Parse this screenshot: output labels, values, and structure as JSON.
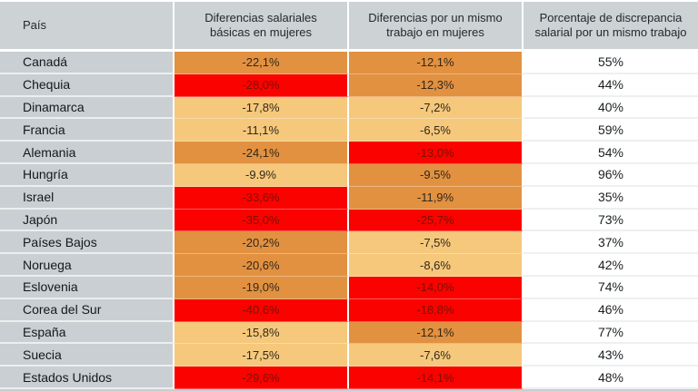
{
  "chart_data": {
    "type": "table",
    "columns": [
      "País",
      "Diferencias salariales básicas en mujeres",
      "Diferencias por un mismo trabajo en mujeres",
      "Porcentaje de discrepancia salarial por un mismo trabajo"
    ],
    "rows": [
      {
        "country": "Canadá",
        "basic_gap": "-22,1%",
        "basic_level": "mid",
        "same_job_gap": "-12,1%",
        "same_job_level": "mid",
        "discrepancy_pct": "55%"
      },
      {
        "country": "Chequia",
        "basic_gap": "-28,0%",
        "basic_level": "high",
        "same_job_gap": "-12,3%",
        "same_job_level": "mid",
        "discrepancy_pct": "44%"
      },
      {
        "country": "Dinamarca",
        "basic_gap": "-17,8%",
        "basic_level": "low",
        "same_job_gap": "-7,2%",
        "same_job_level": "low",
        "discrepancy_pct": "40%"
      },
      {
        "country": "Francia",
        "basic_gap": "-11,1%",
        "basic_level": "low",
        "same_job_gap": "-6,5%",
        "same_job_level": "low",
        "discrepancy_pct": "59%"
      },
      {
        "country": "Alemania",
        "basic_gap": "-24,1%",
        "basic_level": "mid",
        "same_job_gap": "-13,0%",
        "same_job_level": "high",
        "discrepancy_pct": "54%"
      },
      {
        "country": "Hungría",
        "basic_gap": "-9.9%",
        "basic_level": "low",
        "same_job_gap": "-9.5%",
        "same_job_level": "mid",
        "discrepancy_pct": "96%"
      },
      {
        "country": "Israel",
        "basic_gap": "-33,6%",
        "basic_level": "high",
        "same_job_gap": "-11,9%",
        "same_job_level": "mid",
        "discrepancy_pct": "35%"
      },
      {
        "country": "Japón",
        "basic_gap": "-35,0%",
        "basic_level": "high",
        "same_job_gap": "-25,7%",
        "same_job_level": "high",
        "discrepancy_pct": "73%"
      },
      {
        "country": "Países Bajos",
        "basic_gap": "-20,2%",
        "basic_level": "mid",
        "same_job_gap": "-7,5%",
        "same_job_level": "low",
        "discrepancy_pct": "37%"
      },
      {
        "country": "Noruega",
        "basic_gap": "-20,6%",
        "basic_level": "mid",
        "same_job_gap": "-8,6%",
        "same_job_level": "low",
        "discrepancy_pct": "42%"
      },
      {
        "country": "Eslovenia",
        "basic_gap": "-19,0%",
        "basic_level": "mid",
        "same_job_gap": "-14,0%",
        "same_job_level": "high",
        "discrepancy_pct": "74%"
      },
      {
        "country": "Corea del Sur",
        "basic_gap": "-40,6%",
        "basic_level": "high",
        "same_job_gap": "-18,8%",
        "same_job_level": "high",
        "discrepancy_pct": "46%"
      },
      {
        "country": "España",
        "basic_gap": "-15,8%",
        "basic_level": "low",
        "same_job_gap": "-12,1%",
        "same_job_level": "mid",
        "discrepancy_pct": "77%"
      },
      {
        "country": "Suecia",
        "basic_gap": "-17,5%",
        "basic_level": "low",
        "same_job_gap": "-7,6%",
        "same_job_level": "low",
        "discrepancy_pct": "43%"
      },
      {
        "country": "Estados Unidos",
        "basic_gap": "-29,6%",
        "basic_level": "high",
        "same_job_gap": "-14,1%",
        "same_job_level": "high",
        "discrepancy_pct": "48%"
      }
    ]
  },
  "colors": {
    "levels": {
      "low": "#f5c87c",
      "mid": "#e29140",
      "high": "#fa0200"
    },
    "header_bg": "#cdd2d4",
    "country_bg": "#c9cfd2",
    "last_col_bg": "#ffffff",
    "value_text_on_orange": "#33271a",
    "value_text_on_red": "#7d1100",
    "text_dark": "#1d2226",
    "column_divider": "#ffffff",
    "bottom_border": "#c9cfd2"
  }
}
